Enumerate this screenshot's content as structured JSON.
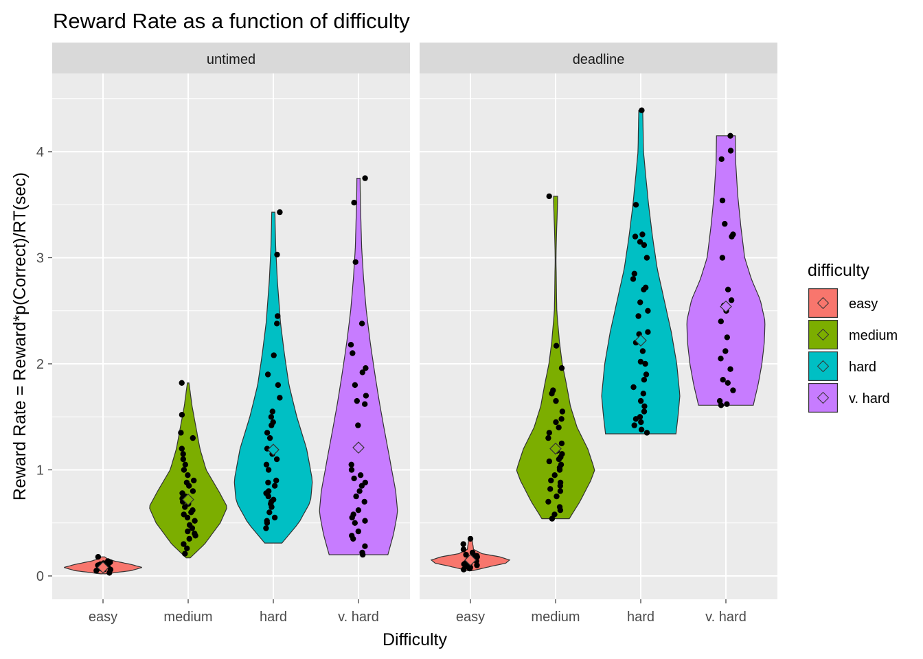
{
  "chart_data": {
    "type": "violin",
    "title": "Reward Rate as a function of difficulty",
    "xlabel": "Difficulty",
    "ylabel": "Reward Rate = Reward*p(Correct)/RT(sec)",
    "categories": [
      "easy",
      "medium",
      "hard",
      "v. hard"
    ],
    "y_ticks": [
      0,
      1,
      2,
      3,
      4
    ],
    "ylim": [
      -0.21,
      4.6
    ],
    "grid": true,
    "legend": {
      "title": "difficulty",
      "position": "right",
      "entries": [
        "easy",
        "medium",
        "hard",
        "v. hard"
      ]
    },
    "colors": {
      "easy": "#F8766D",
      "medium": "#7CAE00",
      "hard": "#00BFC4",
      "v. hard": "#C77CFF"
    },
    "panels": [
      {
        "name": "untimed",
        "violins": [
          {
            "category": "easy",
            "min": 0.02,
            "max": 0.18,
            "mean": 0.08,
            "profile": [
              [
                0.02,
                0.06
              ],
              [
                0.05,
                0.72
              ],
              [
                0.08,
                1.0
              ],
              [
                0.11,
                0.7
              ],
              [
                0.14,
                0.3
              ],
              [
                0.16,
                0.12
              ],
              [
                0.18,
                0.04
              ]
            ],
            "points": [
              0.03,
              0.05,
              0.06,
              0.07,
              0.08,
              0.09,
              0.1,
              0.11,
              0.12,
              0.13,
              0.14,
              0.18,
              0.06,
              0.09
            ]
          },
          {
            "category": "medium",
            "min": 0.17,
            "max": 1.82,
            "mean": 0.72,
            "profile": [
              [
                0.17,
                0.05
              ],
              [
                0.3,
                0.42
              ],
              [
                0.5,
                0.82
              ],
              [
                0.65,
                1.0
              ],
              [
                0.8,
                0.78
              ],
              [
                1.0,
                0.46
              ],
              [
                1.2,
                0.3
              ],
              [
                1.4,
                0.2
              ],
              [
                1.6,
                0.1
              ],
              [
                1.82,
                0.02
              ]
            ],
            "points": [
              0.21,
              0.26,
              0.3,
              0.35,
              0.38,
              0.4,
              0.42,
              0.45,
              0.48,
              0.52,
              0.55,
              0.58,
              0.6,
              0.62,
              0.65,
              0.68,
              0.7,
              0.73,
              0.75,
              0.78,
              0.8,
              0.85,
              0.88,
              0.9,
              0.95,
              1.0,
              1.05,
              1.1,
              1.15,
              1.2,
              1.3,
              1.35,
              1.52,
              1.82
            ]
          },
          {
            "category": "hard",
            "min": 0.31,
            "max": 3.43,
            "mean": 1.19,
            "profile": [
              [
                0.31,
                0.22
              ],
              [
                0.5,
                0.65
              ],
              [
                0.7,
                0.95
              ],
              [
                0.9,
                1.0
              ],
              [
                1.2,
                0.85
              ],
              [
                1.5,
                0.6
              ],
              [
                1.8,
                0.4
              ],
              [
                2.1,
                0.28
              ],
              [
                2.4,
                0.18
              ],
              [
                2.8,
                0.1
              ],
              [
                3.1,
                0.06
              ],
              [
                3.43,
                0.04
              ]
            ],
            "points": [
              0.45,
              0.5,
              0.52,
              0.55,
              0.6,
              0.65,
              0.68,
              0.7,
              0.72,
              0.75,
              0.78,
              0.8,
              0.85,
              0.88,
              0.9,
              1.0,
              1.05,
              1.1,
              1.15,
              1.2,
              1.3,
              1.35,
              1.42,
              1.45,
              1.5,
              1.55,
              1.68,
              1.8,
              1.9,
              2.08,
              2.38,
              2.45,
              3.03,
              3.43
            ]
          },
          {
            "category": "v. hard",
            "min": 0.2,
            "max": 3.75,
            "mean": 1.21,
            "profile": [
              [
                0.2,
                0.75
              ],
              [
                0.4,
                0.9
              ],
              [
                0.6,
                1.0
              ],
              [
                0.8,
                0.95
              ],
              [
                1.0,
                0.85
              ],
              [
                1.3,
                0.7
              ],
              [
                1.6,
                0.55
              ],
              [
                1.9,
                0.42
              ],
              [
                2.2,
                0.3
              ],
              [
                2.5,
                0.2
              ],
              [
                2.8,
                0.13
              ],
              [
                3.1,
                0.08
              ],
              [
                3.5,
                0.05
              ],
              [
                3.75,
                0.04
              ]
            ],
            "points": [
              0.2,
              0.22,
              0.28,
              0.35,
              0.38,
              0.42,
              0.5,
              0.52,
              0.55,
              0.58,
              0.62,
              0.7,
              0.75,
              0.8,
              0.85,
              0.88,
              0.92,
              0.95,
              1.0,
              1.05,
              1.2,
              1.22,
              1.42,
              1.62,
              1.65,
              1.7,
              1.8,
              1.92,
              1.96,
              2.1,
              2.18,
              2.38,
              2.96,
              3.52,
              3.75
            ]
          }
        ]
      },
      {
        "name": "deadline",
        "violins": [
          {
            "category": "easy",
            "min": 0.05,
            "max": 0.35,
            "mean": 0.15,
            "profile": [
              [
                0.05,
                0.06
              ],
              [
                0.09,
                0.52
              ],
              [
                0.12,
                0.9
              ],
              [
                0.15,
                1.0
              ],
              [
                0.18,
                0.75
              ],
              [
                0.21,
                0.3
              ],
              [
                0.25,
                0.08
              ],
              [
                0.3,
                0.06
              ],
              [
                0.35,
                0.04
              ]
            ],
            "points": [
              0.06,
              0.08,
              0.09,
              0.1,
              0.11,
              0.12,
              0.13,
              0.14,
              0.15,
              0.16,
              0.17,
              0.18,
              0.2,
              0.22,
              0.25,
              0.3,
              0.35,
              0.07,
              0.12,
              0.19
            ]
          },
          {
            "category": "medium",
            "min": 0.54,
            "max": 3.58,
            "mean": 1.2,
            "profile": [
              [
                0.54,
                0.35
              ],
              [
                0.7,
                0.62
              ],
              [
                0.9,
                0.9
              ],
              [
                1.0,
                1.0
              ],
              [
                1.2,
                0.82
              ],
              [
                1.4,
                0.55
              ],
              [
                1.6,
                0.38
              ],
              [
                1.8,
                0.28
              ],
              [
                2.0,
                0.17
              ],
              [
                2.2,
                0.1
              ],
              [
                2.5,
                0.03
              ],
              [
                3.0,
                0.01
              ],
              [
                3.3,
                0.03
              ],
              [
                3.5,
                0.05
              ],
              [
                3.58,
                0.05
              ]
            ],
            "points": [
              0.54,
              0.58,
              0.62,
              0.65,
              0.7,
              0.75,
              0.8,
              0.82,
              0.85,
              0.88,
              0.9,
              0.95,
              1.0,
              1.02,
              1.05,
              1.08,
              1.1,
              1.12,
              1.15,
              1.18,
              1.2,
              1.25,
              1.3,
              1.35,
              1.4,
              1.45,
              1.48,
              1.55,
              1.65,
              1.72,
              1.75,
              1.96,
              2.17,
              3.58
            ]
          },
          {
            "category": "hard",
            "min": 1.34,
            "max": 4.39,
            "mean": 2.22,
            "profile": [
              [
                1.34,
                0.9
              ],
              [
                1.5,
                0.95
              ],
              [
                1.7,
                1.0
              ],
              [
                2.0,
                0.92
              ],
              [
                2.3,
                0.78
              ],
              [
                2.6,
                0.6
              ],
              [
                2.9,
                0.42
              ],
              [
                3.2,
                0.3
              ],
              [
                3.5,
                0.2
              ],
              [
                3.8,
                0.12
              ],
              [
                4.0,
                0.07
              ],
              [
                4.2,
                0.06
              ],
              [
                4.39,
                0.05
              ]
            ],
            "points": [
              1.35,
              1.38,
              1.42,
              1.45,
              1.48,
              1.5,
              1.55,
              1.6,
              1.65,
              1.72,
              1.78,
              1.85,
              1.9,
              2.0,
              2.02,
              2.12,
              2.2,
              2.28,
              2.3,
              2.45,
              2.5,
              2.58,
              2.7,
              2.72,
              2.8,
              2.85,
              3.0,
              3.12,
              3.15,
              3.2,
              3.22,
              3.5,
              4.39
            ]
          },
          {
            "category": "v. hard",
            "min": 1.61,
            "max": 4.15,
            "mean": 2.54,
            "profile": [
              [
                1.61,
                0.7
              ],
              [
                1.8,
                0.82
              ],
              [
                2.0,
                0.92
              ],
              [
                2.2,
                0.98
              ],
              [
                2.4,
                1.0
              ],
              [
                2.6,
                0.88
              ],
              [
                2.8,
                0.65
              ],
              [
                3.0,
                0.48
              ],
              [
                3.3,
                0.38
              ],
              [
                3.6,
                0.3
              ],
              [
                3.9,
                0.25
              ],
              [
                4.15,
                0.24
              ]
            ],
            "points": [
              1.61,
              1.62,
              1.65,
              1.75,
              1.82,
              1.85,
              1.95,
              2.05,
              2.12,
              2.25,
              2.4,
              2.5,
              2.55,
              2.6,
              2.7,
              3.0,
              3.2,
              3.22,
              3.32,
              3.54,
              3.93,
              4.01,
              4.15
            ]
          }
        ]
      }
    ]
  }
}
